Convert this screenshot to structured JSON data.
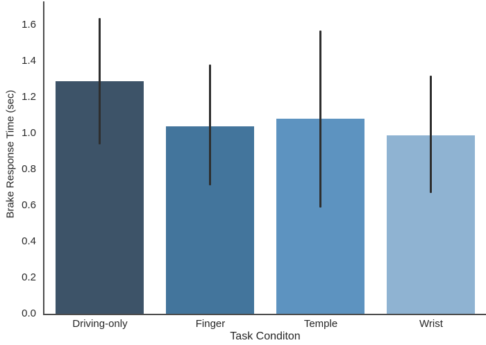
{
  "figure": {
    "background": "#ffffff"
  },
  "chart_data": {
    "type": "bar",
    "title": "",
    "xlabel": "Task Conditon",
    "ylabel": "Brake Response Time (sec)",
    "categories": [
      "Driving-only",
      "Finger",
      "Temple",
      "Wrist"
    ],
    "values": [
      1.29,
      1.04,
      1.08,
      0.99
    ],
    "error_bars": [
      {
        "low": 0.94,
        "high": 1.64
      },
      {
        "low": 0.71,
        "high": 1.38
      },
      {
        "low": 0.59,
        "high": 1.57
      },
      {
        "low": 0.67,
        "high": 1.32
      }
    ],
    "ylim": [
      0,
      1.74
    ],
    "ytick_values": [
      0.0,
      0.2,
      0.4,
      0.6,
      0.8,
      1.0,
      1.2,
      1.4,
      1.6
    ],
    "ytick_labels": [
      "0.0",
      "0.2",
      "0.4",
      "0.6",
      "0.8",
      "1.0",
      "1.2",
      "1.4",
      "1.6"
    ],
    "bar_colors": [
      "#3d5368",
      "#43759c",
      "#5d93c0",
      "#8fb3d2"
    ],
    "error_bar_color": "#2e2e2e",
    "axis_color": "#4c4c4c",
    "text_color": "#262626",
    "grid": false,
    "legend": null,
    "bar_width_fraction": 0.8
  }
}
